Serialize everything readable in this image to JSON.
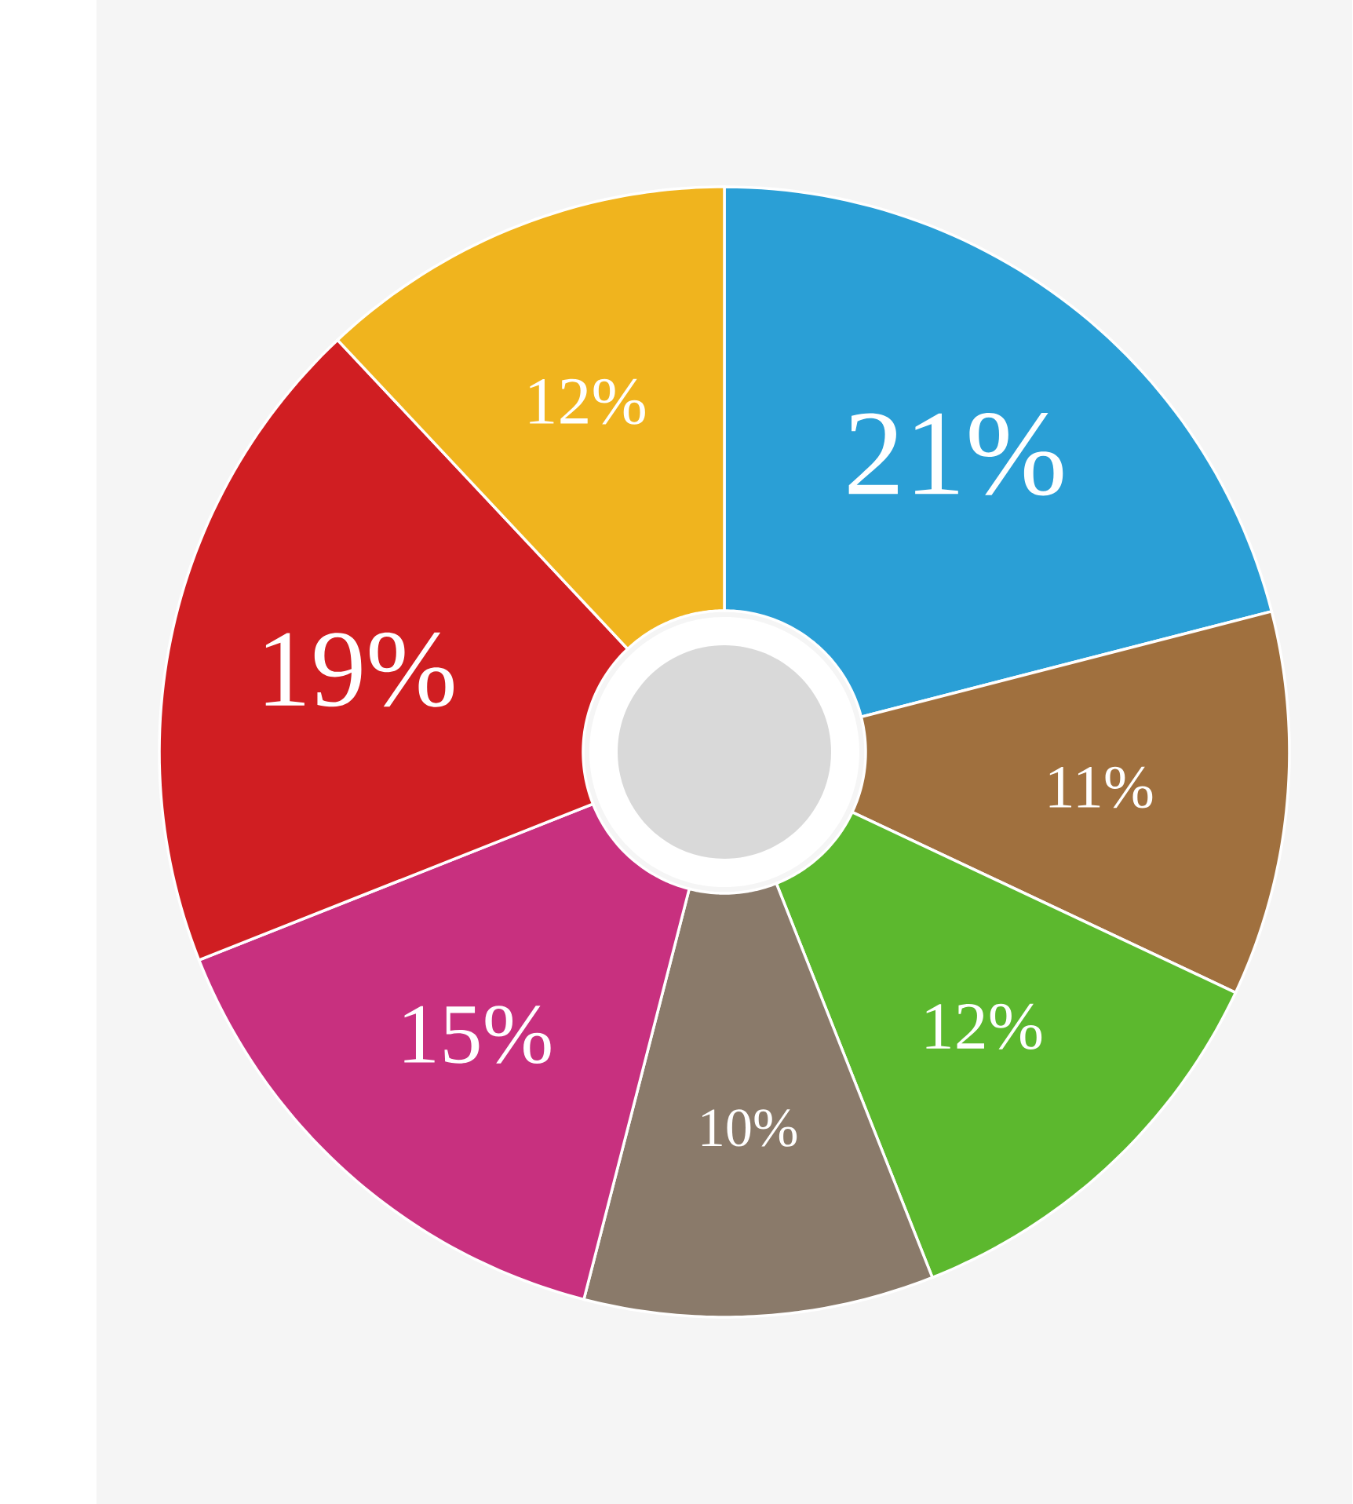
{
  "chart_data": {
    "type": "donut",
    "categories": [
      null,
      null,
      null,
      null,
      null,
      null,
      null
    ],
    "values": [
      21,
      11,
      12,
      10,
      15,
      19,
      12
    ],
    "colors": [
      "#2a9fd6",
      "#a0703e",
      "#5cb82e",
      "#8a7a6a",
      "#c8307f",
      "#d01e22",
      "#f0b41e"
    ],
    "value_labels": [
      "21%",
      "11%",
      "12%",
      "10%",
      "15%",
      "19%",
      "12%"
    ]
  }
}
